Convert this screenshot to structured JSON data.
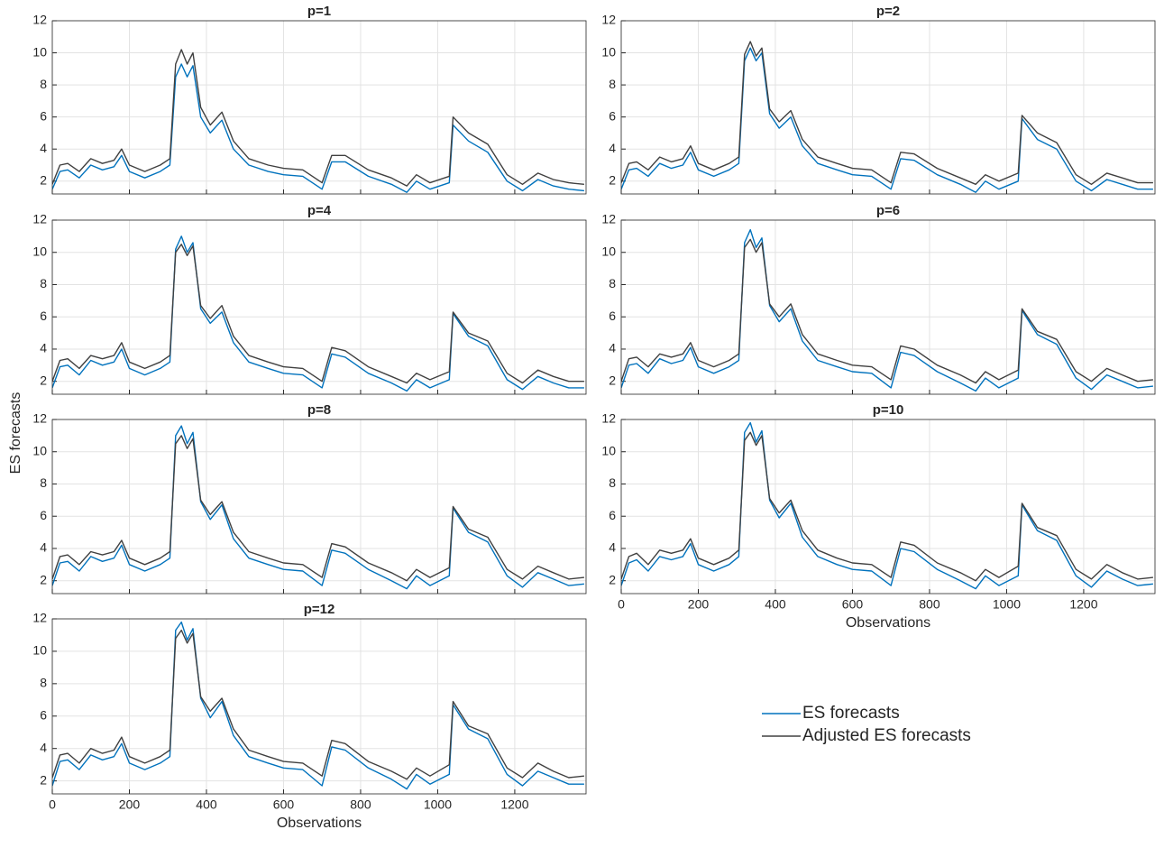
{
  "chart_data": [
    {
      "type": "line",
      "title": "p=1",
      "x": [
        0,
        20,
        40,
        70,
        100,
        130,
        160,
        180,
        200,
        240,
        280,
        305,
        320,
        335,
        350,
        365,
        385,
        410,
        440,
        470,
        510,
        560,
        600,
        650,
        700,
        725,
        760,
        820,
        880,
        920,
        945,
        980,
        1030,
        1040,
        1080,
        1130,
        1180,
        1220,
        1260,
        1300,
        1340,
        1380
      ],
      "series": [
        {
          "name": "ES forecasts",
          "color": "#0072bd",
          "values": [
            1.5,
            2.6,
            2.7,
            2.2,
            3.0,
            2.7,
            2.9,
            3.6,
            2.6,
            2.2,
            2.6,
            3.0,
            8.5,
            9.3,
            8.5,
            9.2,
            6.0,
            5.0,
            5.8,
            4.0,
            3.0,
            2.6,
            2.4,
            2.3,
            1.5,
            3.2,
            3.2,
            2.3,
            1.8,
            1.3,
            2.0,
            1.5,
            1.9,
            5.5,
            4.5,
            3.8,
            2.0,
            1.4,
            2.1,
            1.7,
            1.5,
            1.4
          ]
        },
        {
          "name": "Adjusted ES forecasts",
          "color": "#404040",
          "values": [
            1.8,
            3.0,
            3.1,
            2.6,
            3.4,
            3.1,
            3.3,
            4.0,
            3.0,
            2.6,
            3.0,
            3.4,
            9.3,
            10.2,
            9.3,
            10.0,
            6.6,
            5.5,
            6.3,
            4.5,
            3.4,
            3.0,
            2.8,
            2.7,
            1.9,
            3.6,
            3.6,
            2.7,
            2.2,
            1.7,
            2.4,
            1.9,
            2.3,
            6.0,
            5.0,
            4.3,
            2.4,
            1.8,
            2.5,
            2.1,
            1.9,
            1.8
          ]
        }
      ],
      "xlim": [
        0,
        1385
      ],
      "ylim": [
        1.2,
        12
      ],
      "xticks": [
        0,
        200,
        400,
        600,
        800,
        1000,
        1200
      ],
      "yticks": [
        2,
        4,
        6,
        8,
        10,
        12
      ],
      "grid": true
    },
    {
      "type": "line",
      "title": "p=2",
      "x": [
        0,
        20,
        40,
        70,
        100,
        130,
        160,
        180,
        200,
        240,
        280,
        305,
        320,
        335,
        350,
        365,
        385,
        410,
        440,
        470,
        510,
        560,
        600,
        650,
        700,
        725,
        760,
        820,
        880,
        920,
        945,
        980,
        1030,
        1040,
        1080,
        1130,
        1180,
        1220,
        1260,
        1300,
        1340,
        1380
      ],
      "series": [
        {
          "name": "ES forecasts",
          "color": "#0072bd",
          "values": [
            1.5,
            2.7,
            2.8,
            2.3,
            3.1,
            2.8,
            3.0,
            3.8,
            2.7,
            2.3,
            2.7,
            3.1,
            9.5,
            10.3,
            9.5,
            10.0,
            6.2,
            5.3,
            6.0,
            4.2,
            3.1,
            2.7,
            2.4,
            2.3,
            1.5,
            3.4,
            3.3,
            2.4,
            1.8,
            1.3,
            2.0,
            1.5,
            2.0,
            5.9,
            4.6,
            4.0,
            2.0,
            1.4,
            2.1,
            1.8,
            1.5,
            1.5
          ]
        },
        {
          "name": "Adjusted ES forecasts",
          "color": "#404040",
          "values": [
            1.9,
            3.1,
            3.2,
            2.7,
            3.5,
            3.2,
            3.4,
            4.2,
            3.1,
            2.7,
            3.1,
            3.5,
            9.9,
            10.7,
            9.8,
            10.3,
            6.5,
            5.7,
            6.4,
            4.6,
            3.5,
            3.1,
            2.8,
            2.7,
            1.9,
            3.8,
            3.7,
            2.8,
            2.2,
            1.8,
            2.4,
            2.0,
            2.5,
            6.1,
            5.0,
            4.4,
            2.4,
            1.8,
            2.5,
            2.2,
            1.9,
            1.9
          ]
        }
      ],
      "xlim": [
        0,
        1385
      ],
      "ylim": [
        1.2,
        12
      ],
      "xticks": [
        0,
        200,
        400,
        600,
        800,
        1000,
        1200
      ],
      "yticks": [
        2,
        4,
        6,
        8,
        10,
        12
      ],
      "grid": true
    },
    {
      "type": "line",
      "title": "p=4",
      "x": [
        0,
        20,
        40,
        70,
        100,
        130,
        160,
        180,
        200,
        240,
        280,
        305,
        320,
        335,
        350,
        365,
        385,
        410,
        440,
        470,
        510,
        560,
        600,
        650,
        700,
        725,
        760,
        820,
        880,
        920,
        945,
        980,
        1030,
        1040,
        1080,
        1130,
        1180,
        1220,
        1260,
        1300,
        1340,
        1380
      ],
      "series": [
        {
          "name": "ES forecasts",
          "color": "#0072bd",
          "values": [
            1.6,
            2.9,
            3.0,
            2.4,
            3.3,
            3.0,
            3.2,
            4.0,
            2.8,
            2.4,
            2.8,
            3.2,
            10.2,
            11.0,
            10.0,
            10.6,
            6.5,
            5.6,
            6.3,
            4.4,
            3.2,
            2.8,
            2.5,
            2.4,
            1.6,
            3.7,
            3.5,
            2.5,
            1.9,
            1.4,
            2.1,
            1.6,
            2.1,
            6.2,
            4.8,
            4.2,
            2.1,
            1.5,
            2.3,
            1.9,
            1.6,
            1.6
          ]
        },
        {
          "name": "Adjusted ES forecasts",
          "color": "#404040",
          "values": [
            2.0,
            3.3,
            3.4,
            2.8,
            3.6,
            3.4,
            3.6,
            4.4,
            3.2,
            2.8,
            3.2,
            3.6,
            10.0,
            10.5,
            9.8,
            10.4,
            6.7,
            5.9,
            6.7,
            4.8,
            3.6,
            3.2,
            2.9,
            2.8,
            2.0,
            4.1,
            3.9,
            2.9,
            2.3,
            1.9,
            2.5,
            2.1,
            2.6,
            6.3,
            5.0,
            4.5,
            2.5,
            1.9,
            2.7,
            2.3,
            2.0,
            2.0
          ]
        }
      ],
      "xlim": [
        0,
        1385
      ],
      "ylim": [
        1.2,
        12
      ],
      "xticks": [
        0,
        200,
        400,
        600,
        800,
        1000,
        1200
      ],
      "yticks": [
        2,
        4,
        6,
        8,
        10,
        12
      ],
      "grid": true
    },
    {
      "type": "line",
      "title": "p=6",
      "x": [
        0,
        20,
        40,
        70,
        100,
        130,
        160,
        180,
        200,
        240,
        280,
        305,
        320,
        335,
        350,
        365,
        385,
        410,
        440,
        470,
        510,
        560,
        600,
        650,
        700,
        725,
        760,
        820,
        880,
        920,
        945,
        980,
        1030,
        1040,
        1080,
        1130,
        1180,
        1220,
        1260,
        1300,
        1340,
        1380
      ],
      "series": [
        {
          "name": "ES forecasts",
          "color": "#0072bd",
          "values": [
            1.6,
            3.0,
            3.1,
            2.5,
            3.4,
            3.1,
            3.3,
            4.1,
            2.9,
            2.5,
            2.9,
            3.3,
            10.6,
            11.4,
            10.3,
            10.9,
            6.7,
            5.7,
            6.5,
            4.5,
            3.3,
            2.9,
            2.6,
            2.5,
            1.6,
            3.8,
            3.6,
            2.6,
            1.9,
            1.4,
            2.2,
            1.6,
            2.2,
            6.4,
            4.9,
            4.3,
            2.2,
            1.5,
            2.4,
            2.0,
            1.6,
            1.7
          ]
        },
        {
          "name": "Adjusted ES forecasts",
          "color": "#404040",
          "values": [
            2.0,
            3.4,
            3.5,
            2.9,
            3.7,
            3.5,
            3.7,
            4.4,
            3.3,
            2.9,
            3.3,
            3.7,
            10.3,
            10.8,
            10.0,
            10.6,
            6.8,
            6.0,
            6.8,
            4.9,
            3.7,
            3.3,
            3.0,
            2.9,
            2.1,
            4.2,
            4.0,
            3.0,
            2.4,
            1.9,
            2.6,
            2.1,
            2.7,
            6.5,
            5.1,
            4.6,
            2.6,
            2.0,
            2.8,
            2.4,
            2.0,
            2.1
          ]
        }
      ],
      "xlim": [
        0,
        1385
      ],
      "ylim": [
        1.2,
        12
      ],
      "xticks": [
        0,
        200,
        400,
        600,
        800,
        1000,
        1200
      ],
      "yticks": [
        2,
        4,
        6,
        8,
        10,
        12
      ],
      "grid": true
    },
    {
      "type": "line",
      "title": "p=8",
      "ylabel": "ES forecasts",
      "x": [
        0,
        20,
        40,
        70,
        100,
        130,
        160,
        180,
        200,
        240,
        280,
        305,
        320,
        335,
        350,
        365,
        385,
        410,
        440,
        470,
        510,
        560,
        600,
        650,
        700,
        725,
        760,
        820,
        880,
        920,
        945,
        980,
        1030,
        1040,
        1080,
        1130,
        1180,
        1220,
        1260,
        1300,
        1340,
        1380
      ],
      "series": [
        {
          "name": "ES forecasts",
          "color": "#0072bd",
          "values": [
            1.7,
            3.1,
            3.2,
            2.6,
            3.5,
            3.2,
            3.4,
            4.2,
            3.0,
            2.6,
            3.0,
            3.4,
            11.0,
            11.6,
            10.5,
            11.2,
            6.9,
            5.8,
            6.7,
            4.6,
            3.4,
            3.0,
            2.7,
            2.6,
            1.7,
            3.9,
            3.7,
            2.7,
            2.0,
            1.5,
            2.3,
            1.7,
            2.3,
            6.5,
            5.0,
            4.4,
            2.3,
            1.6,
            2.5,
            2.1,
            1.7,
            1.8
          ]
        },
        {
          "name": "Adjusted ES forecasts",
          "color": "#404040",
          "values": [
            2.1,
            3.5,
            3.6,
            3.0,
            3.8,
            3.6,
            3.8,
            4.5,
            3.4,
            3.0,
            3.4,
            3.8,
            10.5,
            11.0,
            10.2,
            10.8,
            7.0,
            6.1,
            6.9,
            5.0,
            3.8,
            3.4,
            3.1,
            3.0,
            2.2,
            4.3,
            4.1,
            3.1,
            2.5,
            2.0,
            2.7,
            2.2,
            2.8,
            6.6,
            5.2,
            4.7,
            2.7,
            2.1,
            2.9,
            2.5,
            2.1,
            2.2
          ]
        }
      ],
      "xlim": [
        0,
        1385
      ],
      "ylim": [
        1.2,
        12
      ],
      "xticks": [
        0,
        200,
        400,
        600,
        800,
        1000,
        1200
      ],
      "yticks": [
        2,
        4,
        6,
        8,
        10,
        12
      ],
      "grid": true
    },
    {
      "type": "line",
      "title": "p=10",
      "xlabel": "Observations",
      "x": [
        0,
        20,
        40,
        70,
        100,
        130,
        160,
        180,
        200,
        240,
        280,
        305,
        320,
        335,
        350,
        365,
        385,
        410,
        440,
        470,
        510,
        560,
        600,
        650,
        700,
        725,
        760,
        820,
        880,
        920,
        945,
        980,
        1030,
        1040,
        1080,
        1130,
        1180,
        1220,
        1260,
        1300,
        1340,
        1380
      ],
      "series": [
        {
          "name": "ES forecasts",
          "color": "#0072bd",
          "values": [
            1.7,
            3.1,
            3.3,
            2.6,
            3.5,
            3.3,
            3.5,
            4.3,
            3.0,
            2.6,
            3.0,
            3.5,
            11.2,
            11.8,
            10.6,
            11.3,
            7.0,
            5.9,
            6.8,
            4.7,
            3.5,
            3.0,
            2.7,
            2.6,
            1.7,
            4.0,
            3.8,
            2.7,
            2.0,
            1.5,
            2.3,
            1.7,
            2.3,
            6.7,
            5.1,
            4.5,
            2.3,
            1.6,
            2.6,
            2.1,
            1.7,
            1.8
          ]
        },
        {
          "name": "Adjusted ES forecasts",
          "color": "#404040",
          "values": [
            2.1,
            3.5,
            3.7,
            3.0,
            3.9,
            3.7,
            3.9,
            4.6,
            3.4,
            3.0,
            3.4,
            3.9,
            10.7,
            11.2,
            10.4,
            11.0,
            7.1,
            6.2,
            7.0,
            5.1,
            3.9,
            3.4,
            3.1,
            3.0,
            2.2,
            4.4,
            4.2,
            3.1,
            2.5,
            2.0,
            2.7,
            2.2,
            2.9,
            6.8,
            5.3,
            4.8,
            2.7,
            2.1,
            3.0,
            2.5,
            2.1,
            2.2
          ]
        }
      ],
      "xlim": [
        0,
        1385
      ],
      "ylim": [
        1.2,
        12
      ],
      "xticks": [
        0,
        200,
        400,
        600,
        800,
        1000,
        1200
      ],
      "yticks": [
        2,
        4,
        6,
        8,
        10,
        12
      ],
      "grid": true
    },
    {
      "type": "line",
      "title": "p=12",
      "xlabel": "Observations",
      "x": [
        0,
        20,
        40,
        70,
        100,
        130,
        160,
        180,
        200,
        240,
        280,
        305,
        320,
        335,
        350,
        365,
        385,
        410,
        440,
        470,
        510,
        560,
        600,
        650,
        700,
        725,
        760,
        820,
        880,
        920,
        945,
        980,
        1030,
        1040,
        1080,
        1130,
        1180,
        1220,
        1260,
        1300,
        1340,
        1380
      ],
      "series": [
        {
          "name": "ES forecasts",
          "color": "#0072bd",
          "values": [
            1.7,
            3.2,
            3.3,
            2.7,
            3.6,
            3.3,
            3.5,
            4.3,
            3.1,
            2.7,
            3.1,
            3.5,
            11.3,
            11.8,
            10.7,
            11.4,
            7.1,
            5.9,
            6.9,
            4.8,
            3.5,
            3.1,
            2.8,
            2.7,
            1.7,
            4.1,
            3.9,
            2.8,
            2.1,
            1.5,
            2.4,
            1.8,
            2.4,
            6.7,
            5.2,
            4.6,
            2.4,
            1.7,
            2.6,
            2.2,
            1.8,
            1.8
          ]
        },
        {
          "name": "Adjusted ES forecasts",
          "color": "#404040",
          "values": [
            2.2,
            3.6,
            3.7,
            3.1,
            4.0,
            3.7,
            3.9,
            4.7,
            3.5,
            3.1,
            3.5,
            3.9,
            10.8,
            11.3,
            10.5,
            11.1,
            7.2,
            6.3,
            7.1,
            5.2,
            3.9,
            3.5,
            3.2,
            3.1,
            2.3,
            4.5,
            4.3,
            3.2,
            2.6,
            2.1,
            2.8,
            2.3,
            3.0,
            6.9,
            5.4,
            4.9,
            2.8,
            2.2,
            3.1,
            2.6,
            2.2,
            2.3
          ]
        }
      ],
      "xlim": [
        0,
        1385
      ],
      "ylim": [
        1.2,
        12
      ],
      "xticks": [
        0,
        200,
        400,
        600,
        800,
        1000,
        1200
      ],
      "yticks": [
        2,
        4,
        6,
        8,
        10,
        12
      ],
      "grid": true
    }
  ]
}
